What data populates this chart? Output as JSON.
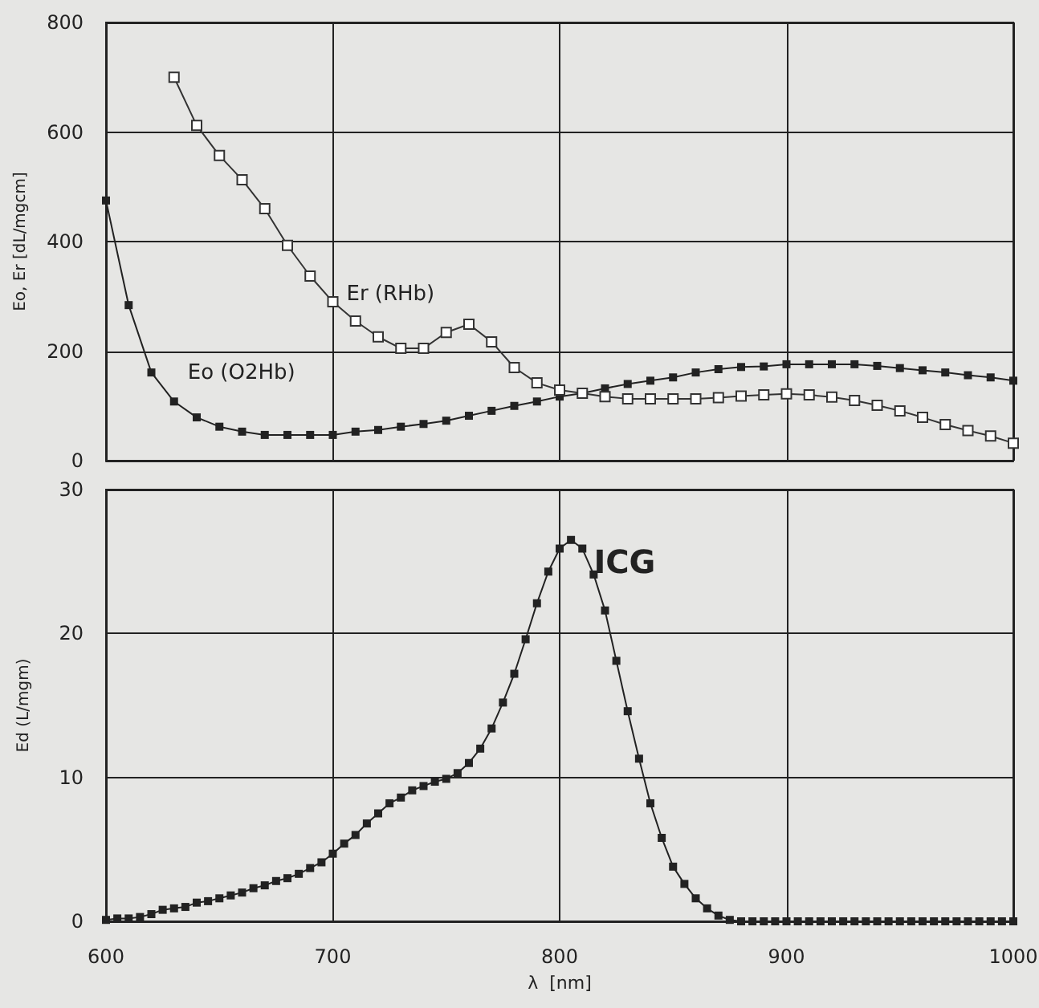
{
  "chart_data": [
    {
      "type": "line",
      "ylabel": "Eo, Er [dL/mgcm]",
      "xlim": [
        600,
        1000
      ],
      "xticks": [
        600,
        700,
        800,
        900,
        1000
      ],
      "ylim": [
        0,
        800
      ],
      "yticks": [
        0,
        200,
        400,
        600,
        800
      ],
      "grid": true,
      "tick_labels": "y",
      "marker": "square",
      "line_style": "solid",
      "annotations": [
        "Er (RHb)",
        "Eo (O2Hb)"
      ],
      "series": [
        {
          "color": "#222222",
          "x": [
            600,
            610,
            620,
            630,
            640,
            650,
            660,
            670,
            680,
            690,
            700,
            710,
            720,
            730,
            740,
            750,
            760,
            770,
            780,
            790,
            800,
            810,
            820,
            830,
            840,
            850,
            860,
            870,
            880,
            890,
            900,
            910,
            920,
            930,
            940,
            950,
            960,
            970,
            980,
            990,
            1000
          ],
          "values": [
            475,
            284,
            161,
            108,
            79,
            62,
            53,
            47,
            47,
            47,
            47,
            53,
            56,
            62,
            67,
            73,
            82,
            91,
            100,
            108,
            117,
            123,
            132,
            140,
            146,
            152,
            161,
            167,
            171,
            172,
            176,
            176,
            176,
            176,
            173,
            169,
            165,
            161,
            156,
            152,
            146
          ]
        },
        {
          "color": "#333333",
          "x": [
            630,
            640,
            650,
            660,
            670,
            680,
            690,
            700,
            710,
            720,
            730,
            740,
            750,
            760,
            770,
            780,
            790,
            800,
            810,
            820,
            830,
            840,
            850,
            860,
            870,
            880,
            890,
            900,
            910,
            920,
            930,
            940,
            950,
            960,
            970,
            980,
            990,
            1000
          ],
          "values": [
            700,
            612,
            557,
            513,
            460,
            393,
            337,
            290,
            255,
            226,
            205,
            205,
            234,
            249,
            217,
            170,
            142,
            129,
            123,
            117,
            113,
            113,
            113,
            113,
            115,
            118,
            120,
            122,
            120,
            116,
            110,
            101,
            91,
            79,
            66,
            55,
            45,
            32
          ]
        }
      ]
    },
    {
      "type": "line",
      "xlabel": "λ  [nm]",
      "ylabel": "Ed (L/mgm)",
      "xlim": [
        600,
        1000
      ],
      "xticks": [
        600,
        700,
        800,
        900,
        1000
      ],
      "ylim": [
        0,
        30
      ],
      "yticks": [
        0,
        10,
        20,
        30
      ],
      "grid": true,
      "marker": "square",
      "line_style": "solid",
      "annotations": [
        {
          "text": "ICG",
          "x": 815,
          "y": 25
        }
      ],
      "series": [
        {
          "color": "#222222",
          "x": [
            600,
            605,
            610,
            615,
            620,
            625,
            630,
            635,
            640,
            645,
            650,
            655,
            660,
            665,
            670,
            675,
            680,
            685,
            690,
            695,
            700,
            705,
            710,
            715,
            720,
            725,
            730,
            735,
            740,
            745,
            750,
            755,
            760,
            765,
            770,
            775,
            780,
            785,
            790,
            795,
            800,
            805,
            810,
            815,
            820,
            825,
            830,
            835,
            840,
            845,
            850,
            855,
            860,
            865,
            870,
            875,
            880,
            885,
            890,
            895,
            900,
            905,
            910,
            915,
            920,
            925,
            930,
            935,
            940,
            945,
            950,
            955,
            960,
            965,
            970,
            975,
            980,
            985,
            990,
            995,
            1000
          ],
          "values": [
            0.1,
            0.2,
            0.2,
            0.3,
            0.5,
            0.8,
            0.9,
            1.0,
            1.3,
            1.4,
            1.6,
            1.8,
            2.0,
            2.3,
            2.5,
            2.8,
            3.0,
            3.3,
            3.7,
            4.1,
            4.7,
            5.4,
            6.0,
            6.8,
            7.5,
            8.2,
            8.6,
            9.1,
            9.4,
            9.7,
            9.9,
            10.3,
            11.0,
            12.0,
            13.4,
            15.2,
            17.2,
            19.6,
            22.1,
            24.3,
            25.9,
            26.5,
            25.9,
            24.1,
            21.6,
            18.1,
            14.6,
            11.3,
            8.2,
            5.8,
            3.8,
            2.6,
            1.6,
            0.9,
            0.4,
            0.1,
            0.0,
            0,
            0,
            0,
            0,
            0,
            0,
            0,
            0,
            0,
            0,
            0,
            0,
            0,
            0,
            0,
            0,
            0,
            0,
            0,
            0,
            0,
            0,
            0,
            0
          ]
        }
      ]
    }
  ]
}
